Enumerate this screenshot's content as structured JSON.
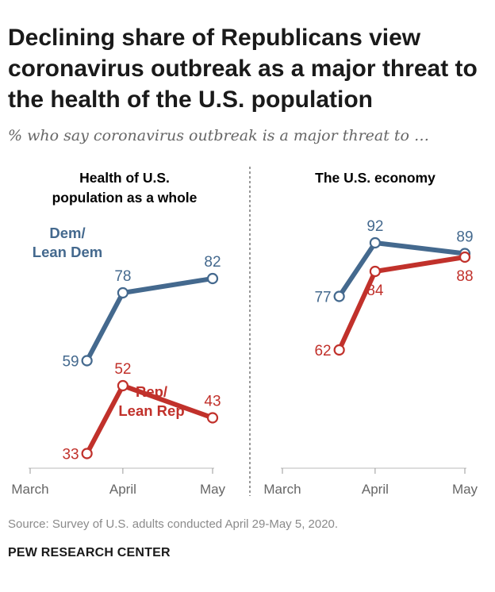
{
  "title": "Declining share of Republicans view coronavirus outbreak as a major threat to the health of the U.S. population",
  "subtitle": "% who say coronavirus outbreak is a major threat to …",
  "source": "Source: Survey of U.S. adults conducted April 29-May 5, 2020.",
  "brand": "PEW RESEARCH CENTER",
  "colors": {
    "dem": "#44698e",
    "rep": "#c1312b",
    "axis": "#888888",
    "divider": "#555555"
  },
  "chart_data": [
    {
      "type": "line",
      "title": "Health of U.S. population as a whole",
      "title_lines": [
        "Health of U.S.",
        "population as a whole"
      ],
      "x_ticks": [
        "March",
        "April",
        "May"
      ],
      "x": [
        "Mar 20",
        "Apr 1",
        "May 1"
      ],
      "series": [
        {
          "name": "Dem/ Lean Dem",
          "name_lines": [
            "Dem/",
            "Lean Dem"
          ],
          "values": [
            59,
            78,
            82
          ]
        },
        {
          "name": "Rep/ Lean Rep",
          "name_lines": [
            "Rep/",
            "Lean Rep"
          ],
          "values": [
            33,
            52,
            43
          ]
        }
      ]
    },
    {
      "type": "line",
      "title": "The U.S. economy",
      "title_lines": [
        "The U.S. economy"
      ],
      "x_ticks": [
        "March",
        "April",
        "May"
      ],
      "x": [
        "Mar 20",
        "Apr 1",
        "May 1"
      ],
      "series": [
        {
          "name": "Dem/ Lean Dem",
          "values": [
            77,
            92,
            89
          ]
        },
        {
          "name": "Rep/ Lean Rep",
          "values": [
            62,
            84,
            88
          ]
        }
      ]
    }
  ]
}
